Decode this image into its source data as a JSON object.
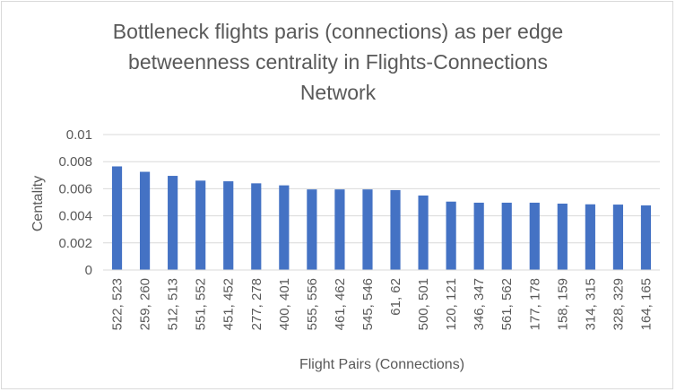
{
  "chart_data": {
    "type": "bar",
    "title_lines": [
      "Bottleneck flights paris (connections) as per edge",
      "betweenness  centrality in Flights-Connections",
      "Network"
    ],
    "xlabel": "Flight Pairs (Connections)",
    "ylabel": "Centality",
    "ylim": [
      0,
      0.01
    ],
    "yticks": [
      "0",
      "0.002",
      "0.004",
      "0.006",
      "0.008",
      "0.01"
    ],
    "ytick_values": [
      0,
      0.002,
      0.004,
      0.006,
      0.008,
      0.01
    ],
    "grid": true,
    "legend": "none",
    "bar_color": "#4472c4",
    "categories": [
      "522, 523",
      "259, 260",
      "512, 513",
      "551, 552",
      "451, 452",
      "277, 278",
      "400, 401",
      "555, 556",
      "461, 462",
      "545, 546",
      "61, 62",
      "500, 501",
      "120, 121",
      "346, 347",
      "561, 562",
      "177, 178",
      "158, 159",
      "314, 315",
      "328, 329",
      "164, 165"
    ],
    "values": [
      0.00765,
      0.00725,
      0.00695,
      0.0066,
      0.00655,
      0.0064,
      0.00625,
      0.00595,
      0.00595,
      0.00595,
      0.0059,
      0.0055,
      0.00505,
      0.00497,
      0.00497,
      0.00497,
      0.0049,
      0.00485,
      0.00483,
      0.00477
    ]
  }
}
